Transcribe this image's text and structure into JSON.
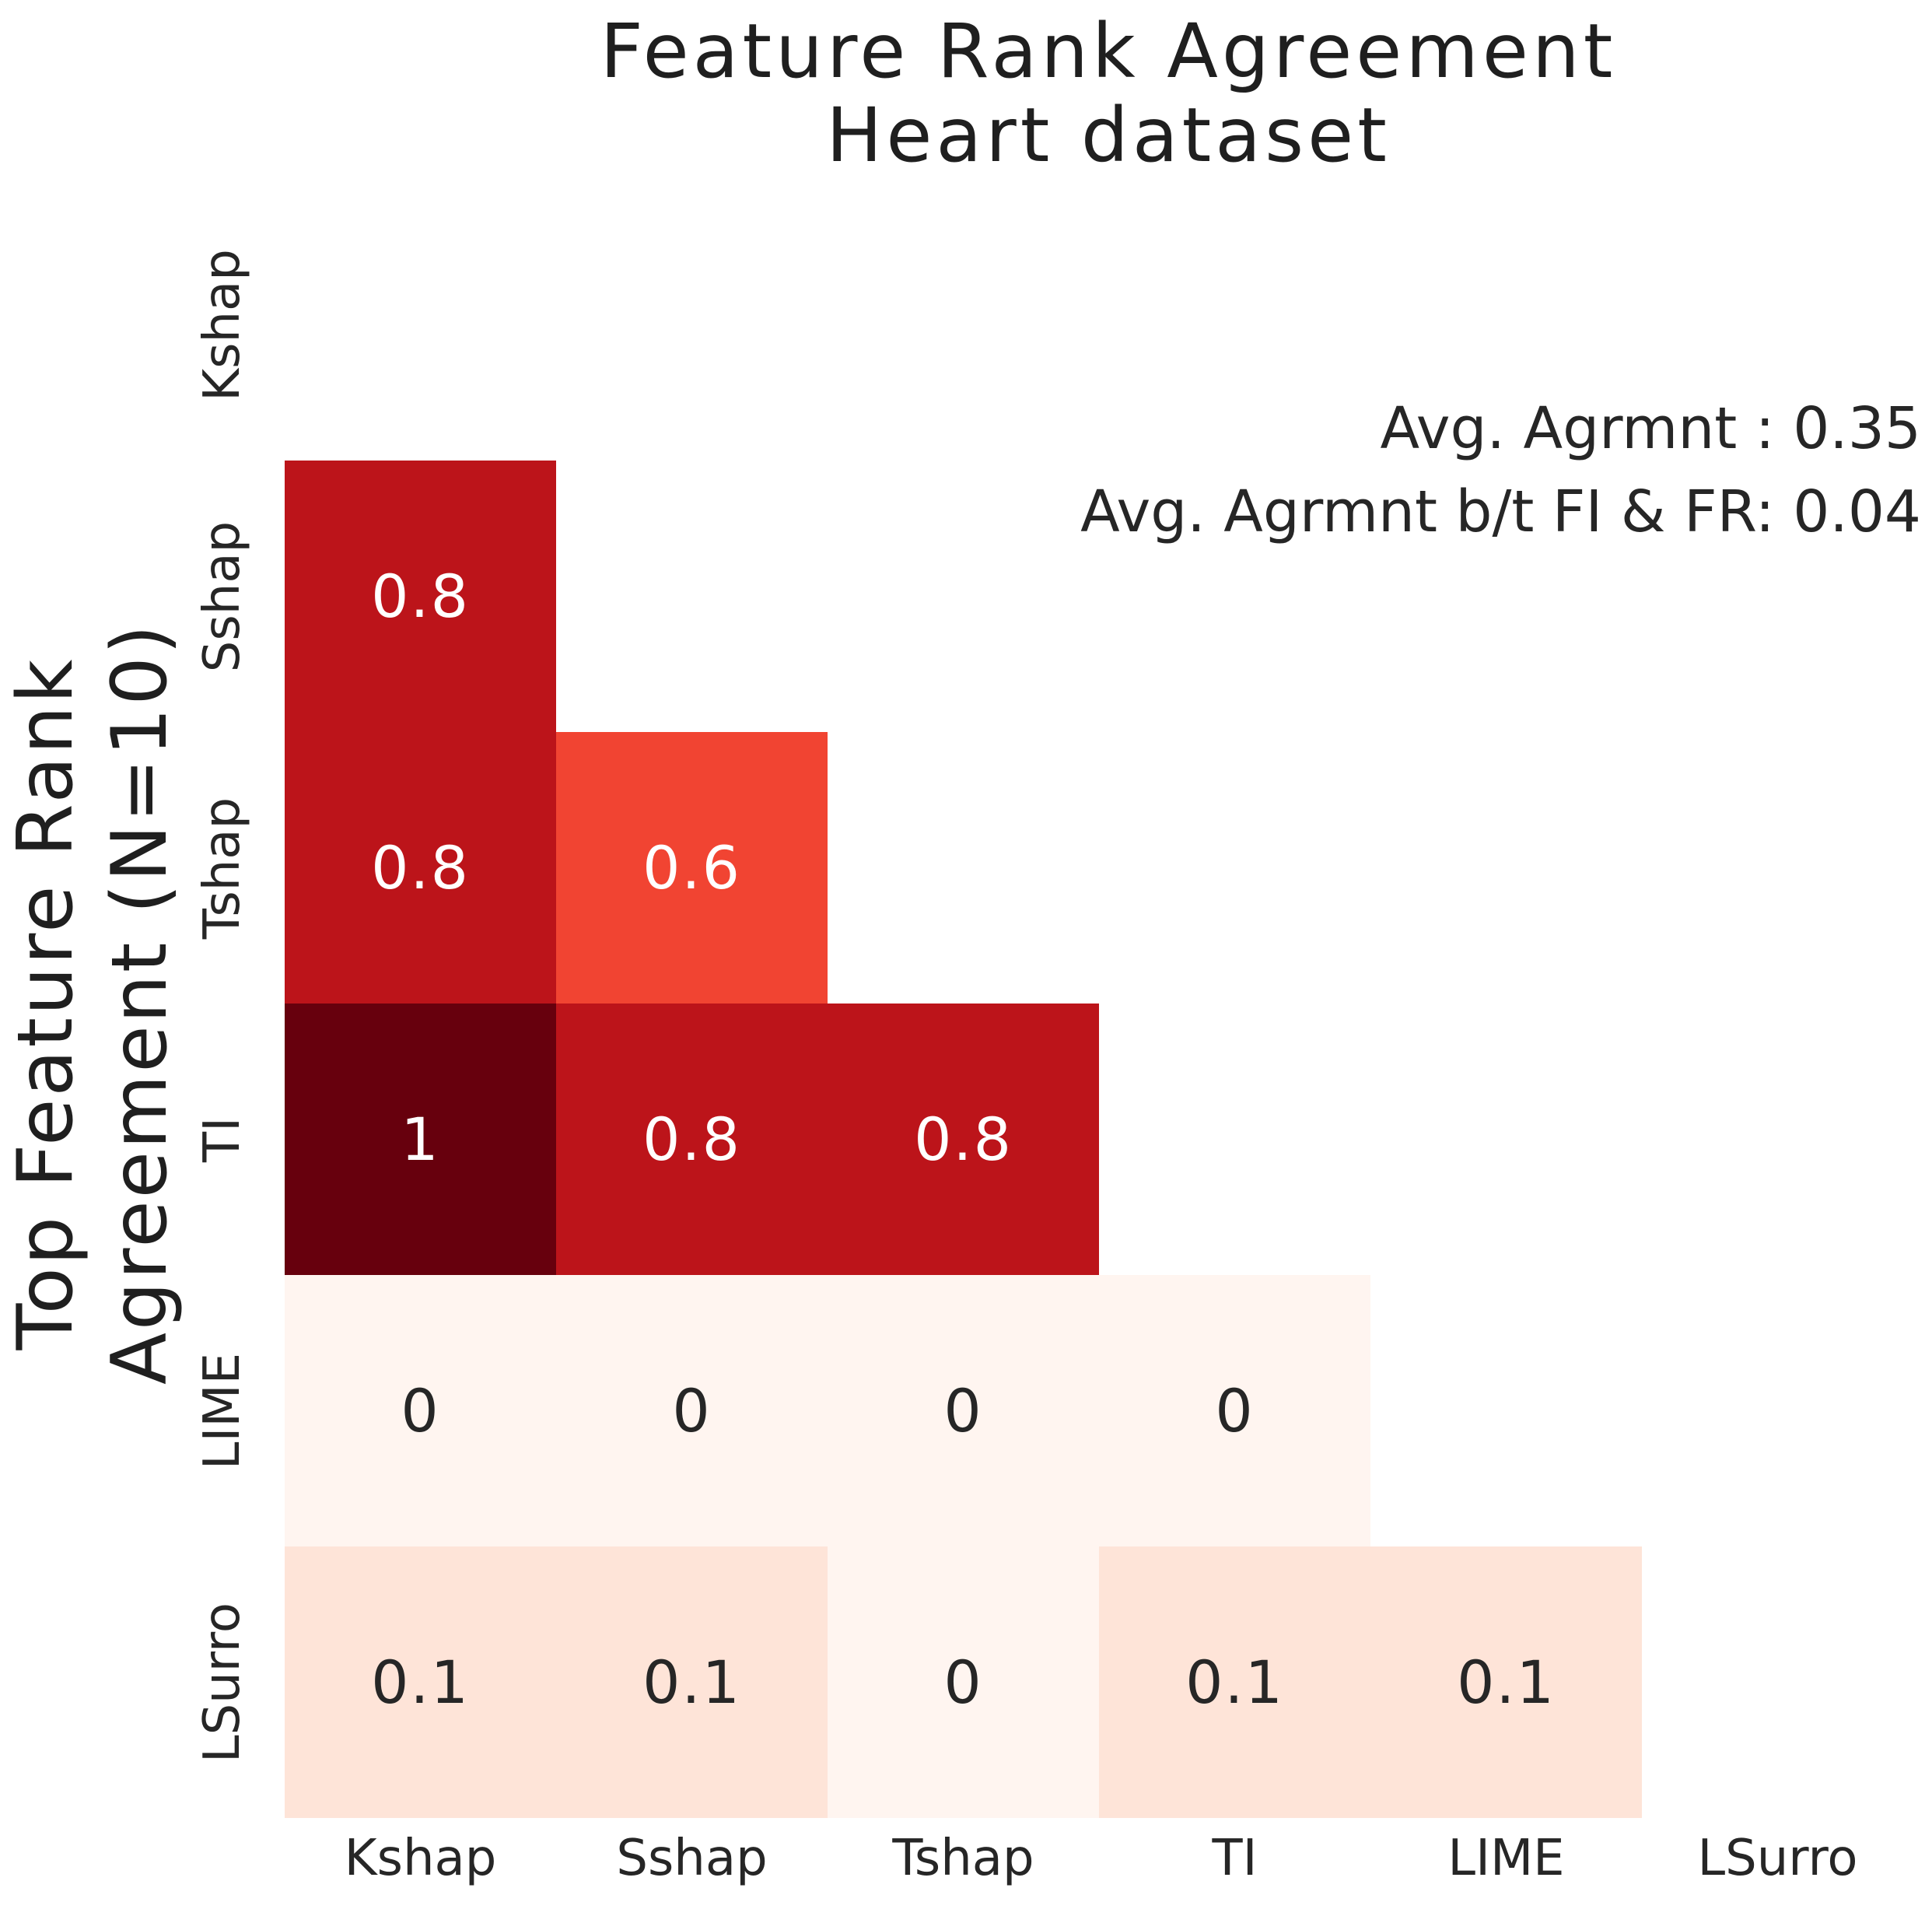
{
  "figure": {
    "title_line1": "Feature Rank Agreement",
    "title_line2": "Heart dataset",
    "annotation_line1": "Avg. Agrmnt : 0.35",
    "annotation_line2": "Avg. Agrmnt b/t FI & FR: 0.04",
    "y_axis_label_line1": "Top Feature Rank",
    "y_axis_label_line2": "Agreement (N=10)"
  },
  "chart_data": {
    "type": "heatmap",
    "title": "Feature Rank Agreement\nHeart dataset",
    "ylabel": "Top Feature Rank Agreement (N=10)",
    "categories": [
      "Kshap",
      "Sshap",
      "Tshap",
      "TI",
      "LIME",
      "LSurro"
    ],
    "x_tick_labels": [
      "Kshap",
      "Sshap",
      "Tshap",
      "TI",
      "LIME",
      "LSurro"
    ],
    "y_tick_labels": [
      "Kshap",
      "Sshap",
      "Tshap",
      "TI",
      "LIME",
      "LSurro"
    ],
    "matrix": [
      [
        null,
        null,
        null,
        null,
        null,
        null
      ],
      [
        0.8,
        null,
        null,
        null,
        null,
        null
      ],
      [
        0.8,
        0.6,
        null,
        null,
        null,
        null
      ],
      [
        1,
        0.8,
        0.8,
        null,
        null,
        null
      ],
      [
        0,
        0,
        0,
        0,
        null,
        null
      ],
      [
        0.1,
        0.1,
        0,
        0.1,
        0.1,
        null
      ]
    ],
    "mask": "upper-triangle-and-diagonal-hidden",
    "colormap": "Reds",
    "vmin": 0,
    "vmax": 1,
    "grid": false,
    "legend": "none",
    "value_colors": {
      "0": "#fff5f0",
      "0.1": "#fee4d8",
      "0.6": "#f14432",
      "0.8": "#bc141a",
      "1": "#67000d"
    },
    "text_dark": "#262626",
    "text_light": "#ffffff",
    "light_text_threshold": 0.6,
    "annotations": {
      "avg_agreement": 0.35,
      "avg_agreement_between_FI_and_FR": 0.04
    }
  }
}
